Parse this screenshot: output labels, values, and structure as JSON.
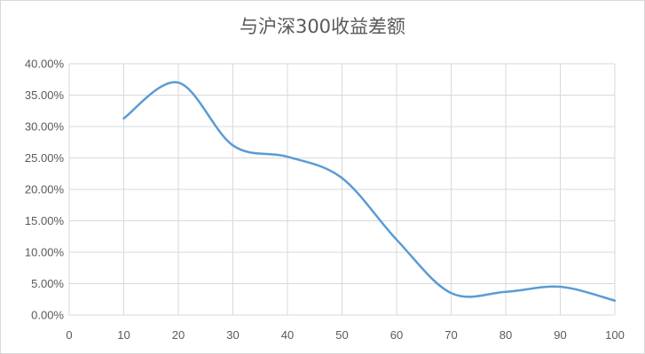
{
  "chart_data": {
    "type": "line",
    "title": "与沪深300收益差额",
    "xlabel": "",
    "ylabel": "",
    "x_ticks": [
      "0",
      "10",
      "20",
      "30",
      "40",
      "50",
      "60",
      "70",
      "80",
      "90",
      "100"
    ],
    "xlim": [
      0,
      100
    ],
    "y_ticks": [
      "0.00%",
      "5.00%",
      "10.00%",
      "15.00%",
      "20.00%",
      "25.00%",
      "30.00%",
      "35.00%",
      "40.00%"
    ],
    "ylim": [
      0,
      0.4
    ],
    "grid": "vertical-and-horizontal",
    "legend": "none",
    "smooth": true,
    "line_color": "#5b9bd5",
    "series": [
      {
        "x": [
          10,
          20,
          30,
          40,
          50,
          60,
          70,
          80,
          90,
          100
        ],
        "values": [
          0.313,
          0.37,
          0.27,
          0.252,
          0.218,
          0.12,
          0.035,
          0.037,
          0.045,
          0.023
        ]
      }
    ]
  }
}
